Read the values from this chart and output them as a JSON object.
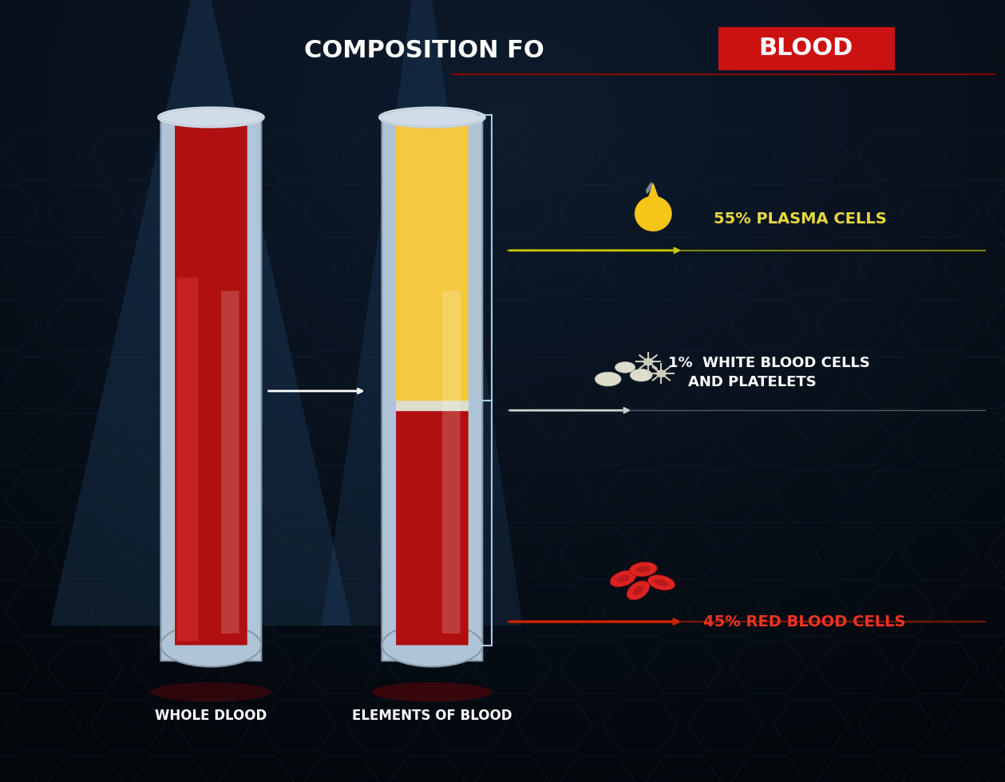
{
  "title_white": "COMPOSITION FO ",
  "title_red": "BLOOD",
  "bg_color": "#0a1628",
  "tube1_label": "WHOLE DLOOD",
  "tube2_label": "ELEMENTS OF BLOOD",
  "plasma_pct": "55% PLASMA CELLS",
  "wbc_pct": "1%  WHITE BLOOD CELLS\n    AND PLATELETS",
  "rbc_pct": "45% RED BLOOD CELLS",
  "plasma_color": "#f5c842",
  "rbc_color": "#cc1111",
  "blood_red": "#b01010",
  "tube_glass": "#c8d8e8",
  "tube_glass_dark": "#6888a0",
  "label_color_white": "#ffffff",
  "label_color_yellow": "#e8d840",
  "label_color_red": "#ee3322",
  "arrow_yellow": "#c8cc00",
  "arrow_white": "#cccccc",
  "arrow_red": "#cc2200",
  "title_bg_red": "#cc1111"
}
